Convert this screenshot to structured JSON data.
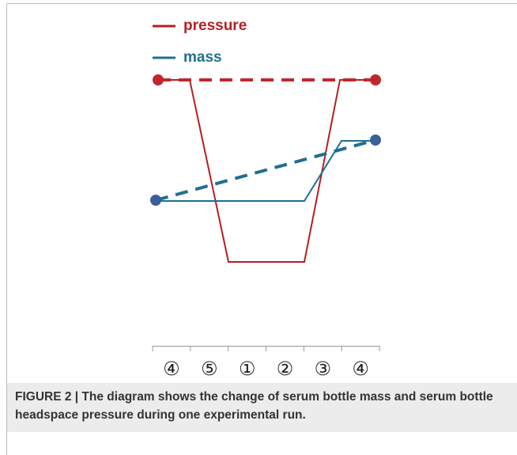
{
  "legend": [
    "pressure",
    "mass"
  ],
  "steps": [
    "④",
    "⑤",
    "①",
    "②",
    "③",
    "④"
  ],
  "caption": "FIGURE 2 | The diagram shows the change of serum bottle mass and serum bottle headspace pressure during one experimental run."
}
